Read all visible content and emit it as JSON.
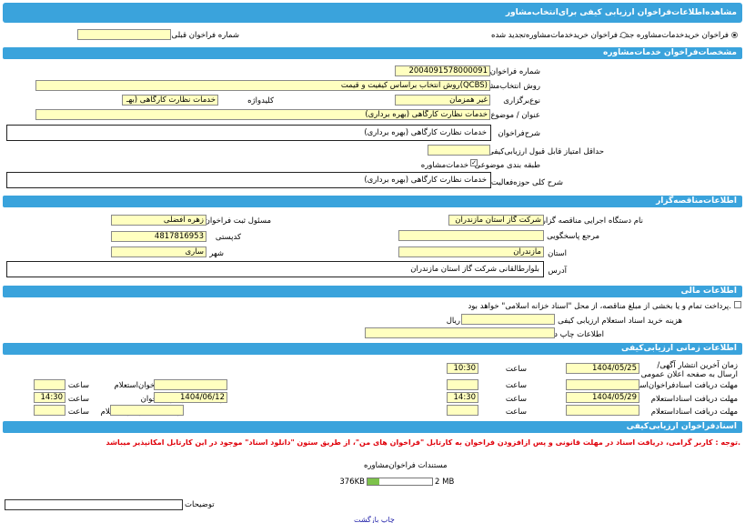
{
  "title": "مشاهده‌اطلاعات‌فراخوان ارزیابی کیفی برای‌انتخاب‌مشاور",
  "type_select": {
    "option1": "فراخوان خریدخدمات‌مشاوره جدید",
    "option2": "فراخوان خریدخدمات‌مشاوره‌تجدید شده",
    "prev_label": "شماره فراخوان قبلی",
    "prev_value": ""
  },
  "spec": {
    "header": "مشخصات‌فراخوان خدمات‌مشاوره",
    "number_label": "شماره فراخوان",
    "number_value": "2004091578000091",
    "method_label": "روش انتخاب‌مشاور",
    "method_value": "روش انتخاب براساس کیفیت و قیمت(QCBS)",
    "type_label": "نوع‌برگزاری",
    "type_value": "غیر همزمان",
    "keyword_label": "کلیدواژه",
    "keyword_value": "خدمات نظارت کارگاهی (بهـ",
    "subject_label": "عنوان / موضوع‌فراخوان",
    "subject_value": "خدمات نظارت کارگاهی (بهره برداری)",
    "desc_label": "شرح‌فراخوان",
    "desc_value": "خدمات نظارت کارگاهی (بهره برداری)",
    "min_score_label": "حداقل امتیاز قابل قبول ارزیابی‌کیفی",
    "min_score_value": "",
    "category_label": "طبقه بندی موضوعی",
    "category_value": "خدمات‌مشاوره",
    "activity_label": "شرح کلی حوزه‌فعالیت",
    "activity_value": "خدمات نظارت کارگاهی (بهره برداری)"
  },
  "tender": {
    "header": "اطلاعات‌مناقصه‌گزار",
    "org_label": "نام دستگاه اجرایی مناقصه گزار",
    "org_value": "شرکت گاز استان مازندران",
    "registrar_label": "مسئول ثبت فراخوان",
    "registrar_value": "زهره افضلی",
    "ref_label": "مرجع پاسخگویی",
    "ref_value": "",
    "postal_label": "کدپستی",
    "postal_value": "4817816953",
    "province_label": "استان",
    "province_value": "مازندران",
    "city_label": "شهر",
    "city_value": "ساری",
    "address_label": "آدرس",
    "address_value": "بلوارطالقانی شرکت گاز استان مازندران"
  },
  "finance": {
    "header": "اطلاعات مالی",
    "payment_text": "پرداخت تمام و یا بخشی از مبلغ مناقصه، از محل \"اسناد خزانه اسلامی\" خواهد بود.",
    "fee_label": "هزینه خرید اسناد استعلام ارزیابی کیفی",
    "fee_value": "",
    "fee_unit": "ریال",
    "print_label": "اطلاعات چاپ در روزنامه",
    "print_value": ""
  },
  "timing": {
    "header": "اطلاعات زمانی ارزیابی‌کیفی",
    "publish_label": "زمان آخرین انتشار آگهی/ارسال به صفحه اعلان عمومی",
    "publish_date": "1404/05/25",
    "publish_time": "10:30",
    "time_label": "ساعت",
    "doc_deadline_label": "مهلت دریافت اسنادفراخوان‌استعلام",
    "doc_deadline_date": "",
    "doc_deadline_time": "",
    "answer_deadline_label": "مهلت ارسال پاسخ فراخوان‌استعلام",
    "answer_deadline_date": "",
    "answer_deadline_time": "",
    "inquiry_deadline_label": "مهلت دریافت اسناداستعلام",
    "inquiry_deadline_date": "1404/05/29",
    "inquiry_deadline_time": "14:30",
    "send_deadline_label": "مهلت ارسال پاسخ‌فراخوان",
    "send_deadline_date": "1404/06/12",
    "send_deadline_time": "14:30",
    "inquiry_docs_label": "مهلت دریافت اسناد‌استعلام",
    "inquiry_docs_date": "",
    "inquiry_docs_time": "",
    "inquiry_send_label": "مهلت ارسال پاسخ‌استعلام",
    "inquiry_send_date": "",
    "inquiry_send_time": ""
  },
  "docs": {
    "header": "اسنادفراخوان ارزیابی‌کیفی",
    "notice": "توجه : کاربر گرامی، دریافت اسناد در مهلت قانونی و پس ازافزودن فراخوان به کارتابل \"فراخوان های من\"، از طریق ستون \"دانلود اسناد\" موجود در این کارتابل امکانپذیر میباشد.",
    "doc_title": "مستندات فراخوان‌مشاوره",
    "size_used": "376KB",
    "size_total": "2 MB",
    "progress_fraction": 0.18,
    "desc_label": "توضیحات",
    "desc_value": ""
  },
  "footer_link": "چاپ بازگشت",
  "colors": {
    "header": "#3aa3dc",
    "field": "#ffffc0",
    "progress": "#7dc24b",
    "notice": "#e0000a",
    "link": "#1a1aa6"
  }
}
